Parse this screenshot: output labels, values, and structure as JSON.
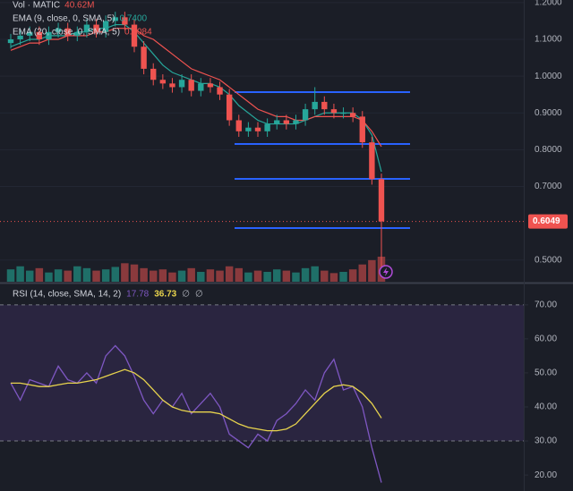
{
  "chart_data": [
    {
      "type": "candlestick",
      "legend": [
        {
          "label": "Vol · MATIC",
          "value": "40.62M",
          "color": "#ef5350"
        },
        {
          "label": "EMA (9, close, 0, SMA, 5)",
          "value": "0.7400",
          "color": "#26a69a"
        },
        {
          "label": "EMA (20, close, 0, SMA, 5)",
          "value": "0.8084",
          "color": "#ef5350"
        }
      ],
      "open": [
        1.09,
        1.1,
        1.11,
        1.12,
        1.1,
        1.12,
        1.13,
        1.11,
        1.12,
        1.14,
        1.12,
        1.15,
        1.16,
        1.14,
        1.08,
        1.02,
        0.99,
        0.98,
        0.97,
        0.99,
        0.96,
        0.98,
        0.97,
        0.95,
        0.88,
        0.85,
        0.86,
        0.85,
        0.87,
        0.88,
        0.87,
        0.88,
        0.91,
        0.93,
        0.91,
        0.9,
        0.9,
        0.89,
        0.82,
        0.72
      ],
      "high": [
        1.115,
        1.125,
        1.135,
        1.135,
        1.135,
        1.145,
        1.145,
        1.135,
        1.155,
        1.155,
        1.165,
        1.175,
        1.175,
        1.155,
        1.095,
        1.035,
        1.005,
        0.995,
        1.005,
        1.005,
        0.995,
        0.995,
        0.985,
        0.965,
        0.895,
        0.875,
        0.875,
        0.885,
        0.895,
        0.895,
        0.895,
        0.925,
        0.97,
        0.945,
        0.925,
        0.915,
        0.915,
        0.905,
        0.835,
        0.735
      ],
      "low": [
        1.075,
        1.085,
        1.095,
        1.085,
        1.085,
        1.105,
        1.095,
        1.095,
        1.105,
        1.105,
        1.105,
        1.135,
        1.125,
        1.065,
        1.005,
        0.975,
        0.965,
        0.955,
        0.955,
        0.945,
        0.945,
        0.955,
        0.935,
        0.865,
        0.835,
        0.835,
        0.835,
        0.835,
        0.855,
        0.855,
        0.855,
        0.865,
        0.895,
        0.895,
        0.885,
        0.885,
        0.875,
        0.805,
        0.705,
        0.46
      ],
      "close": [
        1.1,
        1.11,
        1.12,
        1.1,
        1.12,
        1.13,
        1.11,
        1.12,
        1.14,
        1.12,
        1.15,
        1.16,
        1.14,
        1.08,
        1.02,
        0.99,
        0.98,
        0.97,
        0.99,
        0.96,
        0.98,
        0.97,
        0.95,
        0.88,
        0.85,
        0.86,
        0.85,
        0.87,
        0.88,
        0.87,
        0.88,
        0.91,
        0.93,
        0.91,
        0.9,
        0.9,
        0.89,
        0.82,
        0.72,
        0.6049
      ],
      "volume": [
        20,
        25,
        18,
        22,
        15,
        20,
        18,
        25,
        22,
        18,
        20,
        24,
        30,
        28,
        22,
        18,
        20,
        15,
        18,
        22,
        16,
        20,
        18,
        25,
        22,
        15,
        18,
        16,
        20,
        18,
        15,
        22,
        25,
        18,
        14,
        16,
        20,
        28,
        35,
        40.62
      ],
      "series": [
        {
          "name": "EMA 9",
          "color": "#26a69a",
          "values": [
            1.08,
            1.09,
            1.1,
            1.1,
            1.11,
            1.11,
            1.11,
            1.12,
            1.12,
            1.13,
            1.13,
            1.14,
            1.14,
            1.12,
            1.09,
            1.06,
            1.03,
            1.01,
            1.0,
            0.99,
            0.98,
            0.98,
            0.97,
            0.95,
            0.92,
            0.9,
            0.88,
            0.87,
            0.87,
            0.87,
            0.87,
            0.88,
            0.89,
            0.9,
            0.9,
            0.9,
            0.9,
            0.88,
            0.84,
            0.74
          ]
        },
        {
          "name": "EMA 20",
          "color": "#ef5350",
          "values": [
            1.07,
            1.08,
            1.09,
            1.09,
            1.1,
            1.1,
            1.11,
            1.11,
            1.11,
            1.12,
            1.12,
            1.13,
            1.13,
            1.13,
            1.11,
            1.1,
            1.08,
            1.06,
            1.04,
            1.02,
            1.01,
            1.0,
            0.99,
            0.97,
            0.95,
            0.93,
            0.91,
            0.9,
            0.89,
            0.89,
            0.88,
            0.88,
            0.89,
            0.89,
            0.89,
            0.89,
            0.89,
            0.88,
            0.85,
            0.8084
          ]
        }
      ],
      "levels": [
        0.9565,
        0.8156,
        0.7207,
        0.5869
      ],
      "last_price": {
        "value": 0.6049,
        "label": "0.6049"
      },
      "ylim": [
        0.441,
        1.207
      ],
      "yticks": [
        {
          "value": 1.2,
          "label": "1.2000"
        },
        {
          "value": 1.1,
          "label": "1.1000"
        },
        {
          "value": 1.0,
          "label": "1.0000"
        },
        {
          "value": 0.9,
          "label": "0.9000"
        },
        {
          "value": 0.8,
          "label": "0.8000"
        },
        {
          "value": 0.7,
          "label": "0.7000"
        },
        {
          "value": 0.5,
          "label": "0.5000"
        }
      ]
    },
    {
      "type": "line",
      "legend": {
        "label": "RSI (14, close, SMA, 14, 2)",
        "values": [
          "17.78",
          "36.73",
          "∅",
          "∅"
        ]
      },
      "series": [
        {
          "name": "RSI",
          "color": "#7e57c2",
          "values": [
            47,
            42,
            48,
            47,
            46,
            52,
            48,
            47,
            50,
            47,
            55,
            58,
            55,
            49,
            42,
            38,
            42,
            40,
            44,
            38,
            41,
            44,
            40,
            32,
            30,
            28,
            32,
            30,
            36,
            38,
            41,
            45,
            42,
            50,
            54,
            45,
            46,
            40,
            28,
            17.78
          ]
        },
        {
          "name": "RSI-based MA",
          "color": "#e8d44d",
          "values": [
            47,
            47,
            46.5,
            46,
            46,
            46.5,
            47,
            47,
            47.5,
            48,
            49,
            50,
            51,
            50,
            48,
            45,
            42,
            40,
            39,
            38.5,
            38.5,
            38.5,
            38,
            36.5,
            35,
            34,
            33.5,
            33,
            33,
            33.5,
            35,
            38,
            41,
            44,
            46,
            46.5,
            46,
            44,
            41,
            36.73
          ]
        }
      ],
      "bands": [
        70,
        30
      ],
      "ylim": [
        15.3,
        76.0
      ],
      "yticks": [
        {
          "value": 70,
          "label": "70.00"
        },
        {
          "value": 60,
          "label": "60.00"
        },
        {
          "value": 50,
          "label": "50.00"
        },
        {
          "value": 40,
          "label": "40.00"
        },
        {
          "value": 30,
          "label": "30.00"
        },
        {
          "value": 20,
          "label": "20.00"
        }
      ]
    }
  ]
}
